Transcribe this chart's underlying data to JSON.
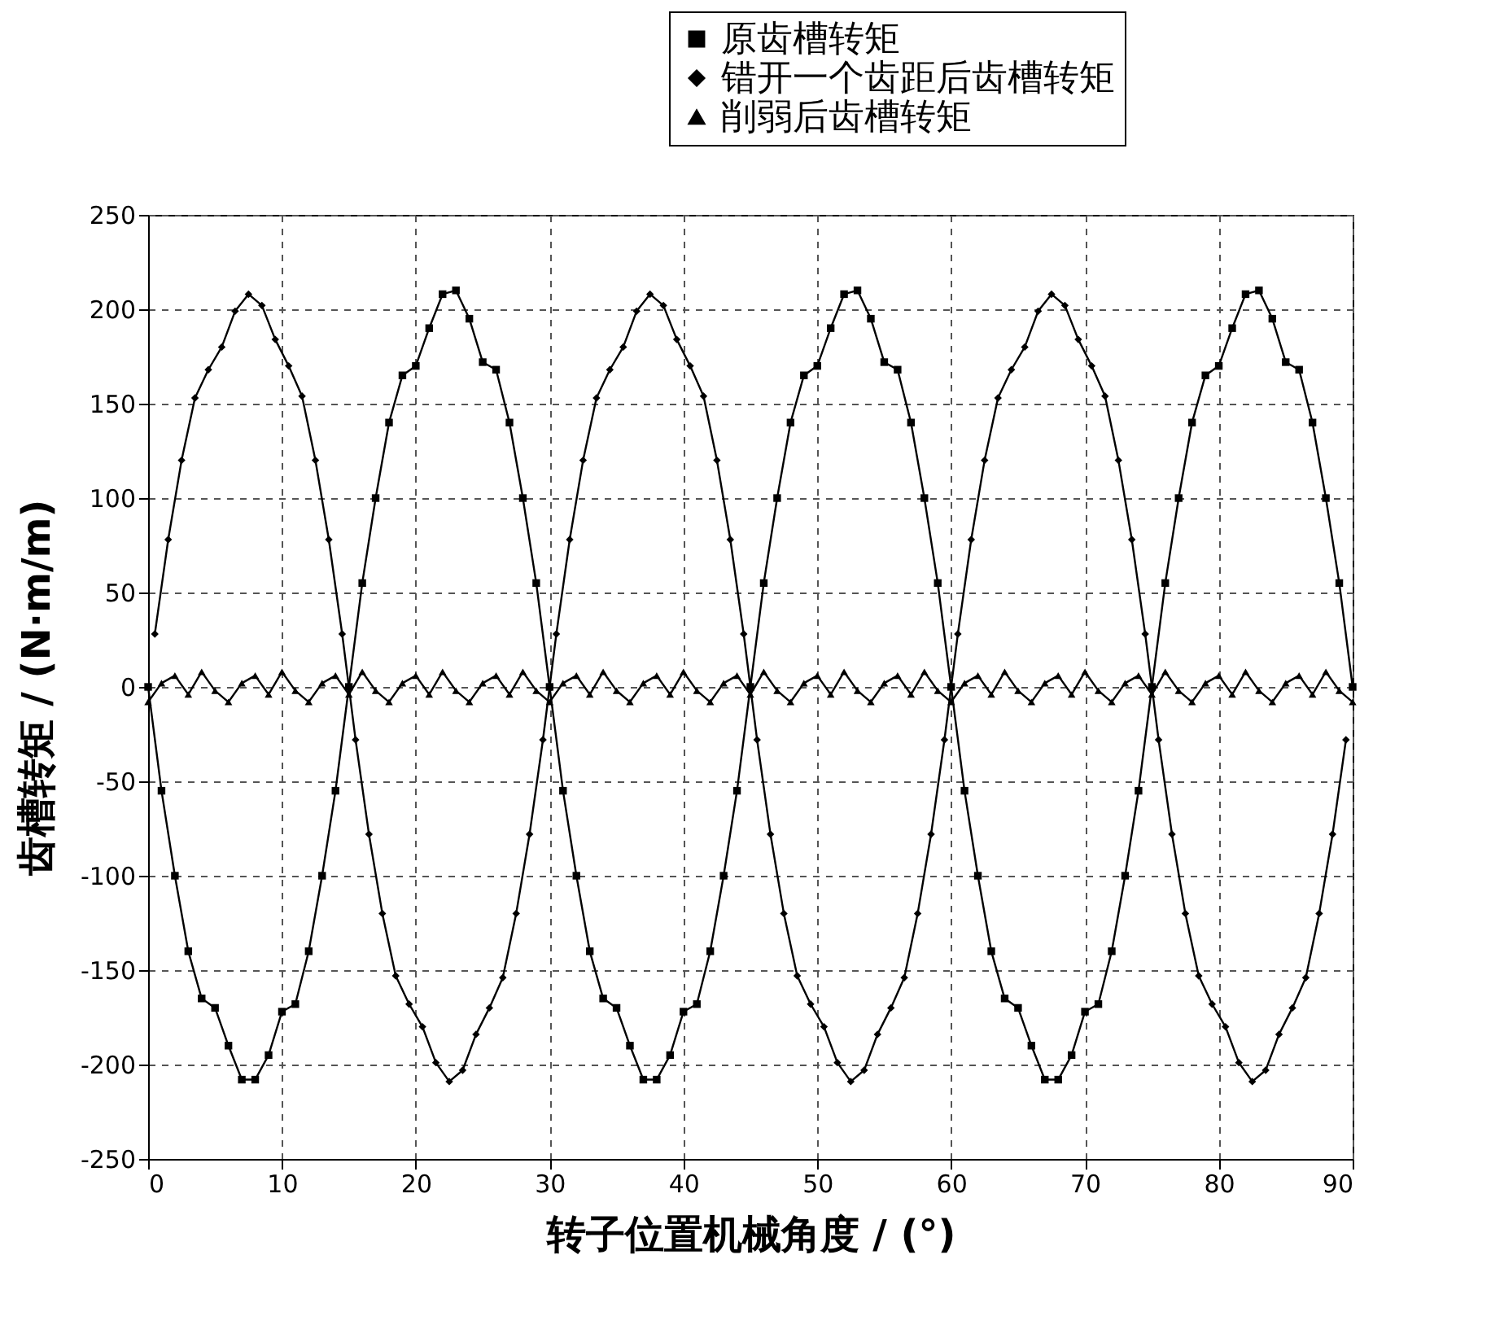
{
  "chart_data": {
    "type": "line",
    "xlabel": "转子位置机械角度 / (°)",
    "ylabel": "齿槽转矩 / (N·m/m)",
    "x": [
      0,
      1,
      2,
      3,
      4,
      5,
      6,
      7,
      8,
      9,
      10,
      11,
      12,
      13,
      14,
      15,
      16,
      17,
      18,
      19,
      20,
      21,
      22,
      23,
      24,
      25,
      26,
      27,
      28,
      29,
      30,
      31,
      32,
      33,
      34,
      35,
      36,
      37,
      38,
      39,
      40,
      41,
      42,
      43,
      44,
      45,
      46,
      47,
      48,
      49,
      50,
      51,
      52,
      53,
      54,
      55,
      56,
      57,
      58,
      59,
      60,
      61,
      62,
      63,
      64,
      65,
      66,
      67,
      68,
      69,
      70,
      71,
      72,
      73,
      74,
      75,
      76,
      77,
      78,
      79,
      80,
      81,
      82,
      83,
      84,
      85,
      86,
      87,
      88,
      89,
      90
    ],
    "series": [
      {
        "name": "原齿槽转矩",
        "color": "#000000",
        "marker": "square",
        "values": [
          0,
          -55,
          -100,
          -140,
          -165,
          -170,
          -190,
          -208,
          -208,
          -195,
          -172,
          -168,
          -140,
          -100,
          -55,
          0,
          55,
          100,
          140,
          165,
          170,
          190,
          208,
          210,
          195,
          172,
          168,
          140,
          100,
          55,
          0,
          -55,
          -100,
          -140,
          -165,
          -170,
          -190,
          -208,
          -208,
          -195,
          -172,
          -168,
          -140,
          -100,
          -55,
          0,
          55,
          100,
          140,
          165,
          170,
          190,
          208,
          210,
          195,
          172,
          168,
          140,
          100,
          55,
          0,
          -55,
          -100,
          -140,
          -165,
          -170,
          -190,
          -208,
          -208,
          -195,
          -172,
          -168,
          -140,
          -100,
          -55,
          0,
          55,
          100,
          140,
          165,
          170,
          190,
          208,
          210,
          195,
          172,
          168,
          140,
          100,
          55,
          0
        ]
      },
      {
        "name": "错开一个齿距后齿槽转矩",
        "color": "#000000",
        "marker": "diamond",
        "x": [
          0.5,
          1.5,
          2.5,
          3.5,
          4.5,
          5.5,
          6.5,
          7.5,
          8.5,
          9.5,
          10.5,
          11.5,
          12.5,
          13.5,
          14.5,
          15.5,
          16.5,
          17.5,
          18.5,
          19.5,
          20.5,
          21.5,
          22.5,
          23.5,
          24.5,
          25.5,
          26.5,
          27.5,
          28.5,
          29.5,
          30.5,
          31.5,
          32.5,
          33.5,
          34.5,
          35.5,
          36.5,
          37.5,
          38.5,
          39.5,
          40.5,
          41.5,
          42.5,
          43.5,
          44.5,
          45.5,
          46.5,
          47.5,
          48.5,
          49.5,
          50.5,
          51.5,
          52.5,
          53.5,
          54.5,
          55.5,
          56.5,
          57.5,
          58.5,
          59.5,
          60.5,
          61.5,
          62.5,
          63.5,
          64.5,
          65.5,
          66.5,
          67.5,
          68.5,
          69.5,
          70.5,
          71.5,
          72.5,
          73.5,
          74.5,
          75.5,
          76.5,
          77.5,
          78.5,
          79.5,
          80.5,
          81.5,
          82.5,
          83.5,
          84.5,
          85.5,
          86.5,
          87.5,
          88.5,
          89.5
        ],
        "values": [
          28,
          78,
          120,
          153,
          168,
          180,
          199,
          208,
          202,
          184,
          170,
          154,
          120,
          78,
          28,
          -28,
          -78,
          -120,
          -153,
          -168,
          -180,
          -199,
          -209,
          -203,
          -184,
          -170,
          -154,
          -120,
          -78,
          -28,
          28,
          78,
          120,
          153,
          168,
          180,
          199,
          208,
          202,
          184,
          170,
          154,
          120,
          78,
          28,
          -28,
          -78,
          -120,
          -153,
          -168,
          -180,
          -199,
          -209,
          -203,
          -184,
          -170,
          -154,
          -120,
          -78,
          -28,
          28,
          78,
          120,
          153,
          168,
          180,
          199,
          208,
          202,
          184,
          170,
          154,
          120,
          78,
          28,
          -28,
          -78,
          -120,
          -153,
          -168,
          -180,
          -199,
          -209,
          -203,
          -184,
          -170,
          -154,
          -120,
          -78,
          -28
        ]
      },
      {
        "name": "削弱后齿槽转矩",
        "color": "#000000",
        "marker": "triangle",
        "values": [
          -8,
          2,
          6,
          -4,
          8,
          -2,
          -8,
          2,
          6,
          -4,
          8,
          -2,
          -8,
          2,
          6,
          -4,
          8,
          -2,
          -8,
          2,
          6,
          -4,
          8,
          -2,
          -8,
          2,
          6,
          -4,
          8,
          -2,
          -8,
          2,
          6,
          -4,
          8,
          -2,
          -8,
          2,
          6,
          -4,
          8,
          -2,
          -8,
          2,
          6,
          -4,
          8,
          -2,
          -8,
          2,
          6,
          -4,
          8,
          -2,
          -8,
          2,
          6,
          -4,
          8,
          -2,
          -8,
          2,
          6,
          -4,
          8,
          -2,
          -8,
          2,
          6,
          -4,
          8,
          -2,
          -8,
          2,
          6,
          -4,
          8,
          -2,
          -8,
          2,
          6,
          -4,
          8,
          -2,
          -8,
          2,
          6,
          -4,
          8,
          -2,
          -8
        ]
      }
    ],
    "xlim": [
      0,
      90
    ],
    "xticks": [
      0,
      10,
      20,
      30,
      40,
      50,
      60,
      70,
      80,
      90
    ],
    "ylim": [
      -250,
      250
    ],
    "yticks": [
      -250,
      -200,
      -150,
      -100,
      -50,
      0,
      50,
      100,
      150,
      200,
      250
    ],
    "grid": true,
    "legend": "top right",
    "line_style": "solid"
  }
}
